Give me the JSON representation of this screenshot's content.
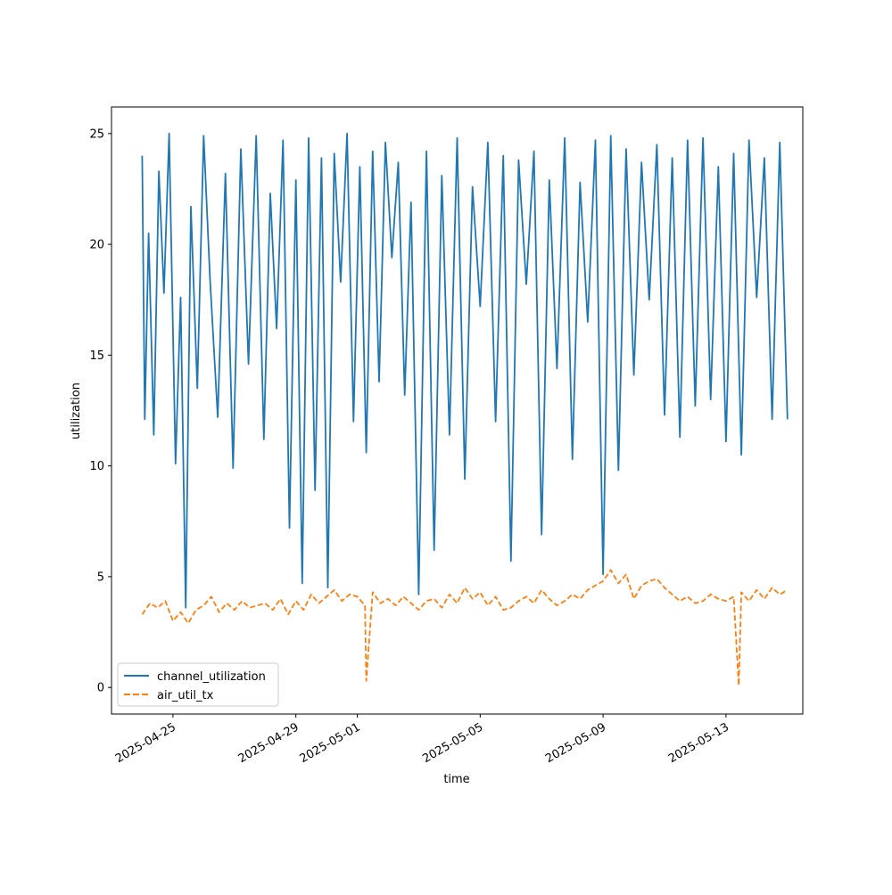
{
  "chart_data": {
    "type": "line",
    "title": "",
    "xlabel": "time",
    "ylabel": "utilization",
    "x_range": [
      "2025-04-23T00:00",
      "2025-05-15T12:00"
    ],
    "ylim": [
      -1.2,
      26.2
    ],
    "x_ticks": [
      "2025-04-25",
      "2025-04-29",
      "2025-05-01",
      "2025-05-05",
      "2025-05-09",
      "2025-05-13"
    ],
    "y_ticks": [
      0,
      5,
      10,
      15,
      20,
      25
    ],
    "grid": false,
    "legend": "lower-left",
    "series": [
      {
        "name": "channel_utilization",
        "color": "#1f77b4",
        "style": "solid",
        "x": [
          "2025-04-24T00:00",
          "2025-04-24T02:00",
          "2025-04-24T05:00",
          "2025-04-24T09:00",
          "2025-04-24T13:00",
          "2025-04-24T17:00",
          "2025-04-24T21:00",
          "2025-04-25T02:00",
          "2025-04-25T06:00",
          "2025-04-25T10:00",
          "2025-04-25T14:00",
          "2025-04-25T19:00",
          "2025-04-26T00:00",
          "2025-04-26T05:00",
          "2025-04-26T11:00",
          "2025-04-26T17:00",
          "2025-04-26T23:00",
          "2025-04-27T05:00",
          "2025-04-27T11:00",
          "2025-04-27T17:00",
          "2025-04-27T23:00",
          "2025-04-28T04:00",
          "2025-04-28T09:00",
          "2025-04-28T14:00",
          "2025-04-28T19:00",
          "2025-04-29T00:00",
          "2025-04-29T05:00",
          "2025-04-29T10:00",
          "2025-04-29T15:00",
          "2025-04-29T20:00",
          "2025-04-30T01:00",
          "2025-04-30T06:00",
          "2025-04-30T11:00",
          "2025-04-30T16:00",
          "2025-04-30T21:00",
          "2025-05-01T02:00",
          "2025-05-01T07:00",
          "2025-05-01T12:00",
          "2025-05-01T17:00",
          "2025-05-01T22:00",
          "2025-05-02T03:00",
          "2025-05-02T08:00",
          "2025-05-02T13:00",
          "2025-05-02T18:00",
          "2025-05-03T00:00",
          "2025-05-03T06:00",
          "2025-05-03T12:00",
          "2025-05-03T18:00",
          "2025-05-04T00:00",
          "2025-05-04T06:00",
          "2025-05-04T12:00",
          "2025-05-04T18:00",
          "2025-05-05T00:00",
          "2025-05-05T06:00",
          "2025-05-05T12:00",
          "2025-05-05T18:00",
          "2025-05-06T00:00",
          "2025-05-06T06:00",
          "2025-05-06T12:00",
          "2025-05-06T18:00",
          "2025-05-07T00:00",
          "2025-05-07T06:00",
          "2025-05-07T12:00",
          "2025-05-07T18:00",
          "2025-05-08T00:00",
          "2025-05-08T06:00",
          "2025-05-08T12:00",
          "2025-05-08T18:00",
          "2025-05-09T00:00",
          "2025-05-09T06:00",
          "2025-05-09T12:00",
          "2025-05-09T18:00",
          "2025-05-10T00:00",
          "2025-05-10T06:00",
          "2025-05-10T12:00",
          "2025-05-10T18:00",
          "2025-05-11T00:00",
          "2025-05-11T06:00",
          "2025-05-11T12:00",
          "2025-05-11T18:00",
          "2025-05-12T00:00",
          "2025-05-12T06:00",
          "2025-05-12T12:00",
          "2025-05-12T18:00",
          "2025-05-13T00:00",
          "2025-05-13T06:00",
          "2025-05-13T12:00",
          "2025-05-13T18:00",
          "2025-05-14T00:00",
          "2025-05-14T06:00",
          "2025-05-14T12:00",
          "2025-05-14T18:00",
          "2025-05-15T00:00"
        ],
        "values": [
          24.0,
          12.1,
          20.5,
          11.4,
          23.3,
          17.8,
          25.0,
          10.1,
          17.6,
          3.6,
          21.7,
          13.5,
          24.9,
          18.4,
          12.2,
          23.2,
          9.9,
          24.3,
          14.6,
          24.9,
          11.2,
          22.3,
          16.2,
          24.7,
          7.2,
          22.9,
          4.7,
          24.8,
          8.9,
          23.9,
          4.5,
          24.1,
          18.3,
          25.0,
          12.0,
          23.5,
          10.6,
          24.2,
          13.8,
          24.6,
          19.4,
          23.7,
          13.2,
          21.9,
          4.2,
          24.2,
          6.2,
          23.1,
          11.4,
          24.8,
          9.4,
          22.6,
          17.2,
          24.6,
          12.0,
          24.0,
          5.7,
          23.8,
          18.2,
          24.2,
          6.9,
          22.9,
          14.4,
          24.8,
          10.3,
          22.8,
          16.5,
          24.7,
          5.1,
          24.9,
          9.8,
          24.3,
          14.1,
          23.7,
          17.5,
          24.5,
          12.3,
          23.9,
          11.3,
          24.7,
          12.7,
          24.8,
          13.0,
          23.5,
          11.1,
          24.1,
          10.5,
          24.7,
          17.6,
          23.9,
          12.1,
          24.6,
          12.1
        ]
      },
      {
        "name": "air_util_tx",
        "color": "#ff7f0e",
        "style": "dashed",
        "x": [
          "2025-04-24T00:00",
          "2025-04-24T06:00",
          "2025-04-24T12:00",
          "2025-04-24T18:00",
          "2025-04-25T00:00",
          "2025-04-25T06:00",
          "2025-04-25T12:00",
          "2025-04-25T18:00",
          "2025-04-26T00:00",
          "2025-04-26T06:00",
          "2025-04-26T12:00",
          "2025-04-26T18:00",
          "2025-04-27T00:00",
          "2025-04-27T06:00",
          "2025-04-27T12:00",
          "2025-04-27T18:00",
          "2025-04-28T00:00",
          "2025-04-28T06:00",
          "2025-04-28T12:00",
          "2025-04-28T18:00",
          "2025-04-29T00:00",
          "2025-04-29T06:00",
          "2025-04-29T12:00",
          "2025-04-29T18:00",
          "2025-04-30T00:00",
          "2025-04-30T06:00",
          "2025-04-30T12:00",
          "2025-04-30T18:00",
          "2025-05-01T00:00",
          "2025-05-01T06:00",
          "2025-05-01T07:00",
          "2025-05-01T12:00",
          "2025-05-01T18:00",
          "2025-05-02T00:00",
          "2025-05-02T06:00",
          "2025-05-02T12:00",
          "2025-05-02T18:00",
          "2025-05-03T00:00",
          "2025-05-03T06:00",
          "2025-05-03T12:00",
          "2025-05-03T18:00",
          "2025-05-04T00:00",
          "2025-05-04T06:00",
          "2025-05-04T12:00",
          "2025-05-04T18:00",
          "2025-05-05T00:00",
          "2025-05-05T06:00",
          "2025-05-05T12:00",
          "2025-05-05T18:00",
          "2025-05-06T00:00",
          "2025-05-06T06:00",
          "2025-05-06T12:00",
          "2025-05-06T18:00",
          "2025-05-07T00:00",
          "2025-05-07T06:00",
          "2025-05-07T12:00",
          "2025-05-07T18:00",
          "2025-05-08T00:00",
          "2025-05-08T06:00",
          "2025-05-08T12:00",
          "2025-05-08T18:00",
          "2025-05-09T00:00",
          "2025-05-09T06:00",
          "2025-05-09T12:00",
          "2025-05-09T18:00",
          "2025-05-10T00:00",
          "2025-05-10T06:00",
          "2025-05-10T12:00",
          "2025-05-10T18:00",
          "2025-05-11T00:00",
          "2025-05-11T06:00",
          "2025-05-11T12:00",
          "2025-05-11T18:00",
          "2025-05-12T00:00",
          "2025-05-12T06:00",
          "2025-05-12T12:00",
          "2025-05-12T18:00",
          "2025-05-13T00:00",
          "2025-05-13T06:00",
          "2025-05-13T10:00",
          "2025-05-13T12:00",
          "2025-05-13T18:00",
          "2025-05-14T00:00",
          "2025-05-14T06:00",
          "2025-05-14T12:00",
          "2025-05-14T18:00",
          "2025-05-15T00:00"
        ],
        "values": [
          3.3,
          3.8,
          3.6,
          3.9,
          3.0,
          3.4,
          2.9,
          3.5,
          3.7,
          4.1,
          3.4,
          3.8,
          3.5,
          3.9,
          3.6,
          3.7,
          3.8,
          3.5,
          4.0,
          3.3,
          3.9,
          3.5,
          4.2,
          3.8,
          4.1,
          4.4,
          3.9,
          4.2,
          4.1,
          3.7,
          0.3,
          4.3,
          3.8,
          4.0,
          3.7,
          4.1,
          3.8,
          3.5,
          3.9,
          4.0,
          3.6,
          4.2,
          3.8,
          4.5,
          4.0,
          4.3,
          3.7,
          4.1,
          3.5,
          3.6,
          3.9,
          4.1,
          3.8,
          4.4,
          4.0,
          3.7,
          3.9,
          4.2,
          4.0,
          4.4,
          4.6,
          4.8,
          5.3,
          4.7,
          5.1,
          4.0,
          4.6,
          4.8,
          4.9,
          4.5,
          4.2,
          3.9,
          4.1,
          3.8,
          3.9,
          4.2,
          4.0,
          3.9,
          4.1,
          0.1,
          4.3,
          3.9,
          4.4,
          4.0,
          4.5,
          4.2,
          4.4
        ]
      }
    ]
  }
}
